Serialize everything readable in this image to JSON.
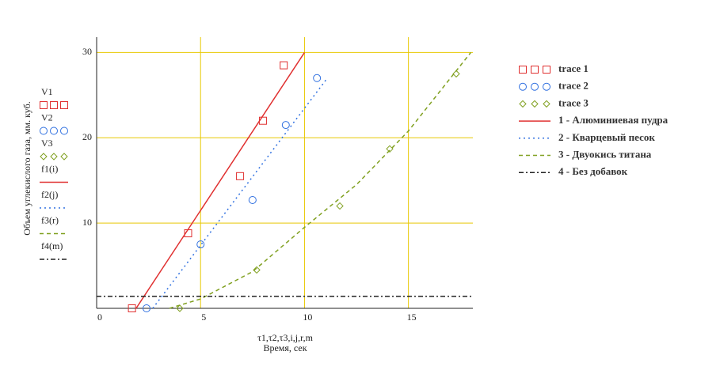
{
  "chart_data": {
    "type": "line",
    "y_label": "Объем углекислого газа, мм. куб.",
    "y_label_variables": [
      "V1",
      "V2",
      "V3",
      "f1(i)",
      "f2(j)",
      "f3(r)",
      "f4(m)"
    ],
    "x_label_variables": "τ1,τ2,τ3,i,j,r,m",
    "x_label": "Время, сек",
    "xlim": [
      0,
      18.1
    ],
    "ylim": [
      0,
      31.8
    ],
    "xticks": [
      0,
      5,
      10,
      15
    ],
    "yticks": [
      10,
      20,
      30
    ],
    "grid": true,
    "grid_color": "#e8c800",
    "series": [
      {
        "name": "trace 1",
        "color": "#e03030",
        "style": "square",
        "x": [
          1.7,
          4.4,
          6.9,
          8.0,
          9.0
        ],
        "values": [
          0,
          8.8,
          15.5,
          22,
          28.5
        ]
      },
      {
        "name": "trace 2",
        "color": "#3070e0",
        "style": "circle",
        "x": [
          2.4,
          5.0,
          7.5,
          9.1,
          10.6
        ],
        "values": [
          0,
          7.5,
          12.7,
          21.5,
          27
        ]
      },
      {
        "name": "trace 3",
        "color": "#80a020",
        "style": "diamond",
        "x": [
          4.0,
          7.7,
          11.7,
          14.1,
          17.3
        ],
        "values": [
          0,
          4.5,
          12,
          18.7,
          27.5
        ]
      },
      {
        "name": "1 - Алюминиевая пудра",
        "color": "#e03030",
        "style": "solid",
        "x": [
          1.9,
          10
        ],
        "values": [
          0,
          30
        ]
      },
      {
        "name": "2 - Кварцевый песок",
        "color": "#3070e0",
        "style": "dotted",
        "x": [
          2.7,
          11.1
        ],
        "values": [
          0,
          27
        ]
      },
      {
        "name": "3 - Двуокись титана",
        "color": "#80a020",
        "style": "dashed",
        "x": [
          3.5,
          5,
          7.5,
          10,
          12.5,
          15,
          18
        ],
        "values": [
          0,
          1.1,
          4.3,
          9.5,
          14.5,
          20.8,
          30
        ]
      },
      {
        "name": "4 - Без добавок",
        "color": "#222222",
        "style": "dashdot",
        "x": [
          0,
          18.1
        ],
        "values": [
          1.4,
          1.4
        ]
      }
    ]
  }
}
